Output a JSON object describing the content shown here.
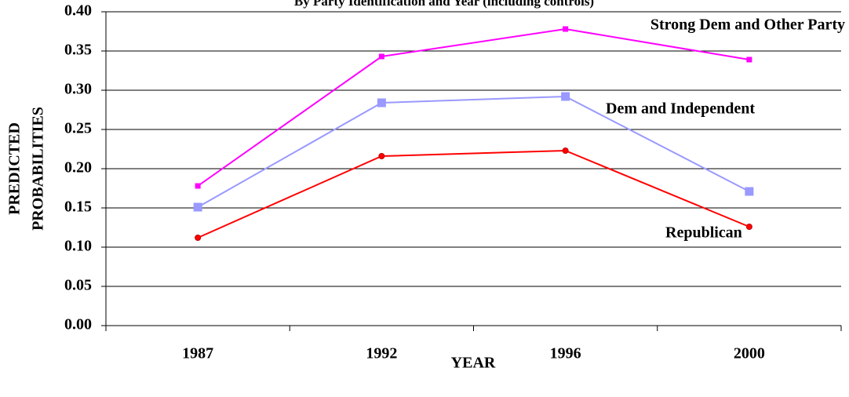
{
  "chart_data": {
    "type": "line",
    "title": "By Party Identification and Year (including controls)",
    "x_label": "YEAR",
    "y_label": [
      "PREDICTED",
      "PROBABILITIES"
    ],
    "categories": [
      "1987",
      "1992",
      "1996",
      "2000"
    ],
    "series": [
      {
        "name": "Strong Dem and Other Party",
        "color": "#ff00ff",
        "marker": "square",
        "values": [
          0.178,
          0.343,
          0.378,
          0.339
        ]
      },
      {
        "name": "Dem and Independent",
        "color": "#9999ff",
        "marker": "square",
        "values": [
          0.151,
          0.284,
          0.292,
          0.171
        ]
      },
      {
        "name": "Republican",
        "color": "#ff0000",
        "marker": "circle",
        "values": [
          0.112,
          0.216,
          0.223,
          0.126
        ]
      }
    ],
    "ylim": [
      0,
      0.4
    ],
    "yticks": [
      {
        "value": 0,
        "label": "0.00"
      },
      {
        "value": 0.05,
        "label": "0.05"
      },
      {
        "value": 0.1,
        "label": "0.10"
      },
      {
        "value": 0.15,
        "label": "0.15"
      },
      {
        "value": 0.2,
        "label": "0.20"
      },
      {
        "value": 0.25,
        "label": "0.25"
      },
      {
        "value": 0.3,
        "label": "0.30"
      },
      {
        "value": 0.35,
        "label": "0.35"
      },
      {
        "value": 0.4,
        "label": "0.40"
      }
    ],
    "grid": true
  }
}
